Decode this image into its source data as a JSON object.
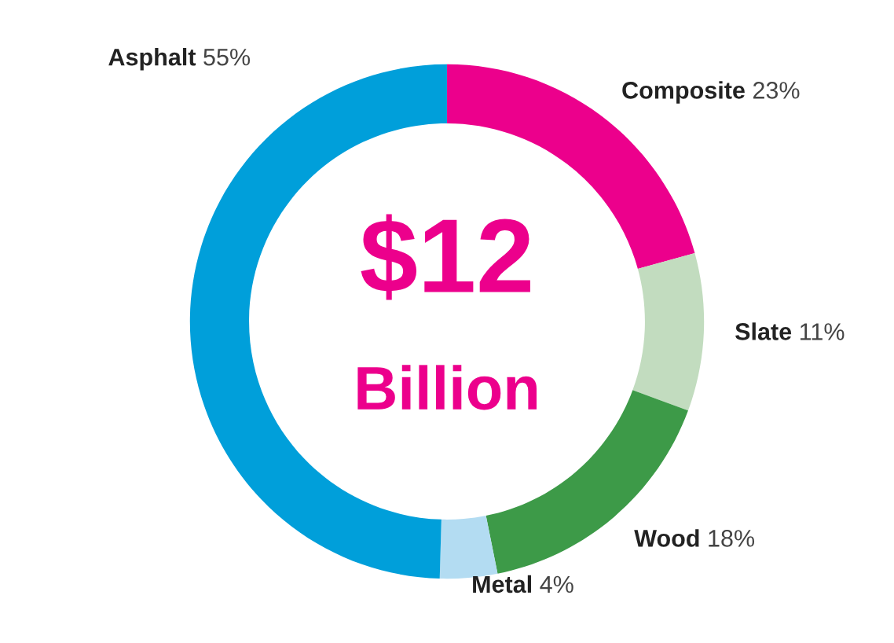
{
  "chart_data": {
    "type": "donut",
    "categories": [
      "Composite",
      "Slate",
      "Wood",
      "Metal",
      "Asphalt"
    ],
    "values": [
      23,
      11,
      18,
      4,
      55
    ],
    "colors": [
      "#ec008c",
      "#c2dcbf",
      "#3d9a48",
      "#b3dcf2",
      "#009fda"
    ],
    "value_labels": [
      "23%",
      "11%",
      "18%",
      "4%",
      "55%"
    ],
    "annotations": [
      "$12",
      "Billion"
    ],
    "legend": false
  }
}
